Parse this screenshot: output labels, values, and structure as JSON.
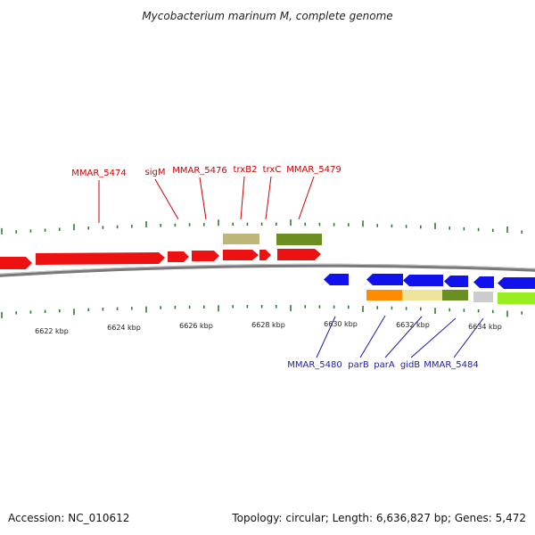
{
  "title": "Mycobacterium marinum M, complete genome",
  "footer": {
    "accession": "Accession: NC_010612",
    "summary": "Topology: circular; Length: 6,636,827 bp; Genes: 5,472"
  },
  "colors": {
    "forward_label": "#cc0000",
    "reverse_label": "#1a1aa8",
    "tick": "#2e7d32",
    "backbone": "#8c8c8c"
  },
  "scale_labels": [
    "6622 kbp",
    "6624 kbp",
    "6626 kbp",
    "6628 kbp",
    "6630 kbp",
    "6632 kbp",
    "6634 kbp"
  ],
  "forward_labels": [
    "MMAR_5474",
    "sigM",
    "MMAR_5476",
    "trxB2",
    "trxC",
    "MMAR_5479"
  ],
  "reverse_labels": [
    "MMAR_5480",
    "parB",
    "parA",
    "gidB",
    "MMAR_5484"
  ]
}
